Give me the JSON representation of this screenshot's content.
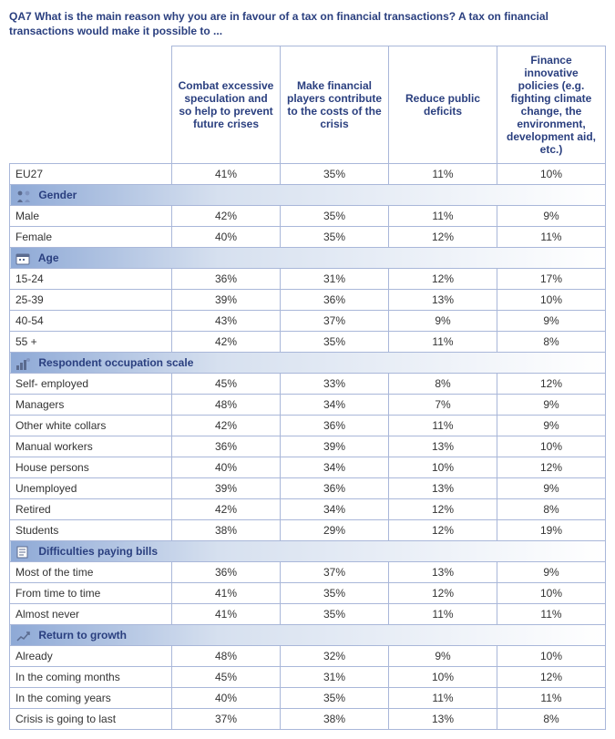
{
  "question": "QA7  What is the main reason why you are in favour of a tax on financial transactions? A tax on financial transactions would make it possible to ...",
  "columns": [
    "Combat excessive speculation and so help to prevent future crises",
    "Make financial players contribute to the costs of the crisis",
    "Reduce public deficits",
    "Finance innovative policies (e.g. fighting climate change, the environment, development aid, etc.)"
  ],
  "header_text_color": "#2a3f7f",
  "border_color": "#a9b7d9",
  "section_gradient_start": "#8ea9d6",
  "section_gradient_end": "#ffffff",
  "overall": {
    "label": "EU27",
    "values": [
      "41%",
      "35%",
      "11%",
      "10%"
    ]
  },
  "sections": [
    {
      "title": "Gender",
      "icon": "gender-icon",
      "rows": [
        {
          "label": "Male",
          "values": [
            "42%",
            "35%",
            "11%",
            "9%"
          ]
        },
        {
          "label": "Female",
          "values": [
            "40%",
            "35%",
            "12%",
            "11%"
          ]
        }
      ]
    },
    {
      "title": "Age",
      "icon": "calendar-icon",
      "rows": [
        {
          "label": "15-24",
          "values": [
            "36%",
            "31%",
            "12%",
            "17%"
          ]
        },
        {
          "label": "25-39",
          "values": [
            "39%",
            "36%",
            "13%",
            "10%"
          ]
        },
        {
          "label": "40-54",
          "values": [
            "43%",
            "37%",
            "9%",
            "9%"
          ]
        },
        {
          "label": "55 +",
          "values": [
            "42%",
            "35%",
            "11%",
            "8%"
          ]
        }
      ]
    },
    {
      "title": "Respondent occupation scale",
      "icon": "occupation-icon",
      "rows": [
        {
          "label": "Self- employed",
          "values": [
            "45%",
            "33%",
            "8%",
            "12%"
          ]
        },
        {
          "label": "Managers",
          "values": [
            "48%",
            "34%",
            "7%",
            "9%"
          ]
        },
        {
          "label": "Other white collars",
          "values": [
            "42%",
            "36%",
            "11%",
            "9%"
          ]
        },
        {
          "label": "Manual workers",
          "values": [
            "36%",
            "39%",
            "13%",
            "10%"
          ]
        },
        {
          "label": "House persons",
          "values": [
            "40%",
            "34%",
            "10%",
            "12%"
          ]
        },
        {
          "label": "Unemployed",
          "values": [
            "39%",
            "36%",
            "13%",
            "9%"
          ]
        },
        {
          "label": "Retired",
          "values": [
            "42%",
            "34%",
            "12%",
            "8%"
          ]
        },
        {
          "label": "Students",
          "values": [
            "38%",
            "29%",
            "12%",
            "19%"
          ]
        }
      ]
    },
    {
      "title": "Difficulties paying bills",
      "icon": "bills-icon",
      "rows": [
        {
          "label": "Most of the time",
          "values": [
            "36%",
            "37%",
            "13%",
            "9%"
          ]
        },
        {
          "label": "From time to time",
          "values": [
            "41%",
            "35%",
            "12%",
            "10%"
          ]
        },
        {
          "label": "Almost never",
          "values": [
            "41%",
            "35%",
            "11%",
            "11%"
          ]
        }
      ]
    },
    {
      "title": "Return to growth",
      "icon": "growth-icon",
      "rows": [
        {
          "label": "Already",
          "values": [
            "48%",
            "32%",
            "9%",
            "10%"
          ]
        },
        {
          "label": "In the coming months",
          "values": [
            "45%",
            "31%",
            "10%",
            "12%"
          ]
        },
        {
          "label": "In the coming years",
          "values": [
            "40%",
            "35%",
            "11%",
            "11%"
          ]
        },
        {
          "label": "Crisis is going to last",
          "values": [
            "37%",
            "38%",
            "13%",
            "8%"
          ]
        }
      ]
    }
  ],
  "icons": {
    "gender-icon": "<svg viewBox='0 0 18 14'><circle cx='5' cy='4' r='2.4' fill='#5b6b8f'/><path d='M2 14 q3-6 6 0 Z' fill='#5b6b8f'/><circle cx='13' cy='4' r='2.4' fill='#8094bf'/><path d='M10 14 q3-6 6 0 Z' fill='#8094bf'/></svg>",
    "calendar-icon": "<svg viewBox='0 0 18 14'><rect x='1' y='2' width='14' height='11' rx='1' fill='#ffffff' stroke='#5b6b8f'/><rect x='1' y='2' width='14' height='3' fill='#5b6b8f'/><rect x='4' y='7' width='2' height='2' fill='#5b6b8f'/><rect x='8' y='7' width='2' height='2' fill='#5b6b8f'/></svg>",
    "occupation-icon": "<svg viewBox='0 0 18 14'><rect x='1' y='9' width='3' height='5' fill='#5b6b8f'/><rect x='5' y='6' width='3' height='8' fill='#5b6b8f'/><rect x='9' y='3' width='3' height='11' fill='#5b6b8f'/><circle cx='14' cy='3' r='2' fill='#8094bf'/></svg>",
    "bills-icon": "<svg viewBox='0 0 18 14'><rect x='2' y='1' width='11' height='12' fill='#ffffff' stroke='#5b6b8f'/><line x1='4' y1='4' x2='11' y2='4' stroke='#5b6b8f'/><line x1='4' y1='7' x2='11' y2='7' stroke='#5b6b8f'/><line x1='4' y1='10' x2='9' y2='10' stroke='#5b6b8f'/></svg>",
    "growth-icon": "<svg viewBox='0 0 18 14'><polyline points='2,12 6,8 9,10 15,3' fill='none' stroke='#5b6b8f' stroke-width='1.5'/><polyline points='12,3 15,3 15,6' fill='none' stroke='#5b6b8f' stroke-width='1.5'/></svg>"
  }
}
